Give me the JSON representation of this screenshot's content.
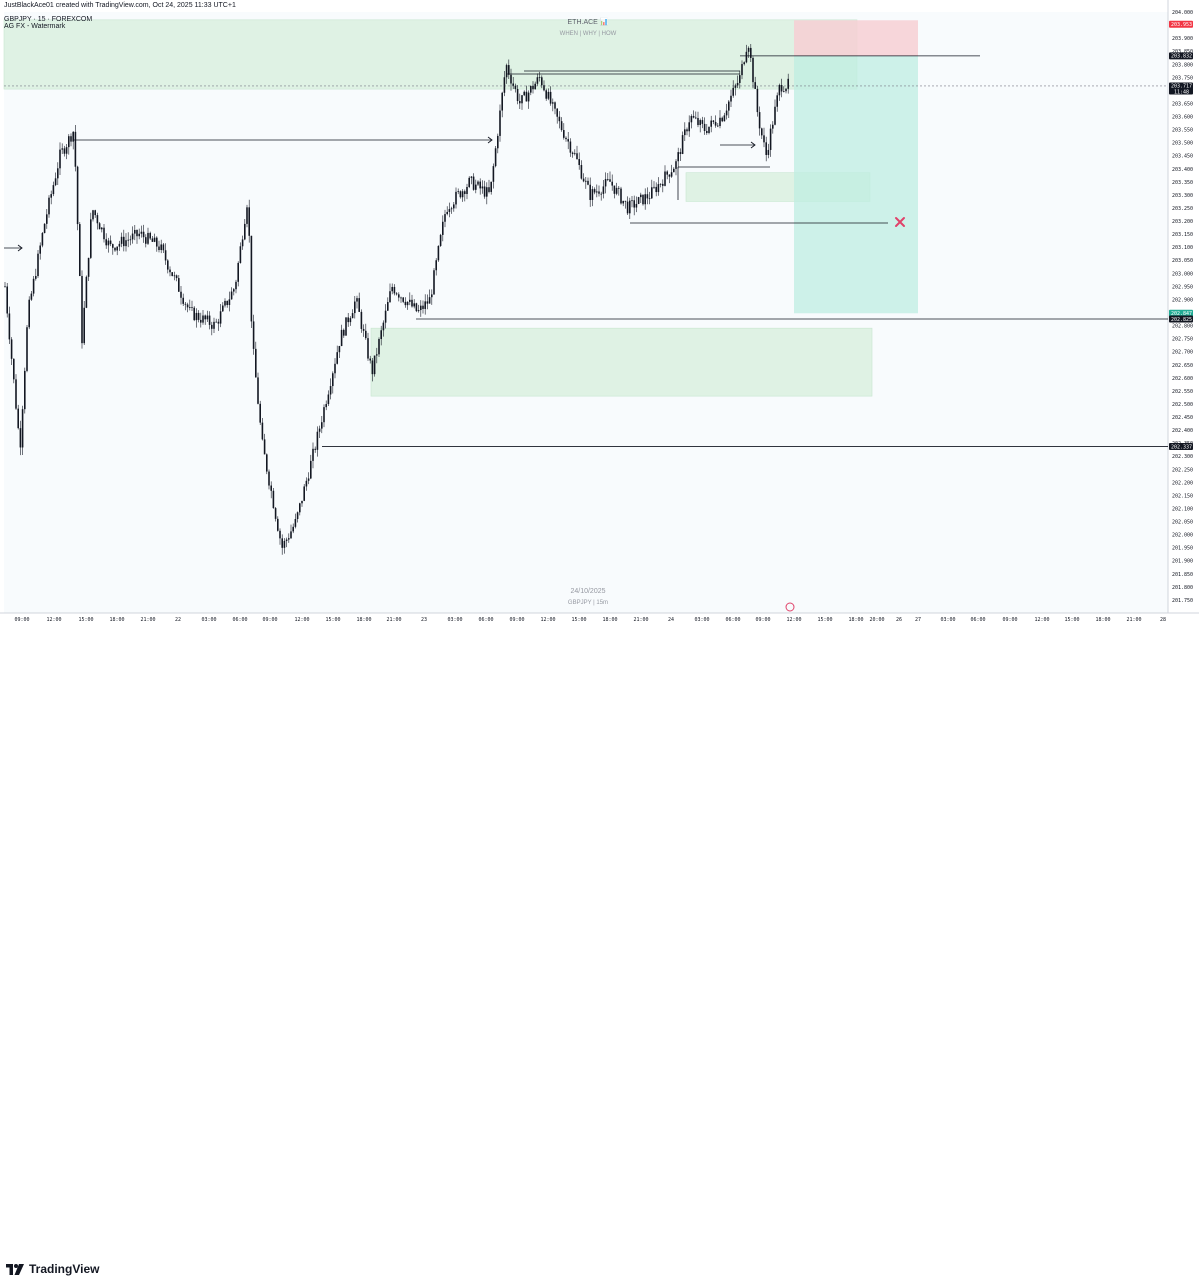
{
  "header": {
    "created_by": "JustBlackAce01 created with TradingView.com, Oct 24, 2025 11:33 UTC+1",
    "symbol_line": "GBPJPY · 15 · FOREXCOM",
    "indicator_line": "AG FX - Watermark"
  },
  "watermark": {
    "brand": "ETH.ACE 📊",
    "tagline": "WHEN | WHY | HOW",
    "date": "24/10/2025",
    "symbol_tf": "GBPJPY | 15m"
  },
  "footer": {
    "logo_icon": "tradingview-logo-icon",
    "brand": "TradingView"
  },
  "chart_data": {
    "type": "candlestick",
    "symbol": "GBPJPY",
    "timeframe": "15",
    "ylim": [
      201.7,
      204.0
    ],
    "y_ticks": [
      "204.000",
      "203.950",
      "203.900",
      "203.850",
      "203.800",
      "203.750",
      "203.700",
      "203.650",
      "203.600",
      "203.550",
      "203.500",
      "203.450",
      "203.400",
      "203.350",
      "203.300",
      "203.250",
      "203.200",
      "203.150",
      "203.100",
      "203.050",
      "203.000",
      "202.950",
      "202.900",
      "202.850",
      "202.800",
      "202.750",
      "202.700",
      "202.650",
      "202.600",
      "202.550",
      "202.500",
      "202.450",
      "202.400",
      "202.350",
      "202.300",
      "202.250",
      "202.200",
      "202.150",
      "202.100",
      "202.050",
      "202.000",
      "201.950",
      "201.900",
      "201.850",
      "201.800",
      "201.750"
    ],
    "x_ticks": [
      "09:00",
      "12:00",
      "15:00",
      "18:00",
      "21:00",
      "22",
      "03:00",
      "06:00",
      "09:00",
      "12:00",
      "15:00",
      "18:00",
      "21:00",
      "23",
      "03:00",
      "06:00",
      "09:00",
      "12:00",
      "15:00",
      "18:00",
      "21:00",
      "24",
      "03:00",
      "06:00",
      "09:00",
      "12:00",
      "15:00",
      "18:00",
      "20:00",
      "26",
      "27",
      "03:00",
      "06:00",
      "09:00",
      "12:00",
      "15:00",
      "18:00",
      "21:00",
      "28"
    ],
    "price_labels": [
      {
        "value": 203.953,
        "text": "203.953",
        "bg": "#f23645",
        "fg": "#ffffff"
      },
      {
        "value": 203.832,
        "text": "203.832",
        "bg": "#131722",
        "fg": "#ffffff"
      },
      {
        "value": 203.717,
        "text": "203.717",
        "sub": "11:48",
        "bg": "#131722",
        "fg": "#ffffff"
      },
      {
        "value": 202.847,
        "text": "202.847",
        "bg": "#22ab94",
        "fg": "#ffffff"
      },
      {
        "value": 202.825,
        "text": "202.825",
        "bg": "#131722",
        "fg": "#ffffff"
      },
      {
        "value": 202.337,
        "text": "202.337",
        "bg": "#131722",
        "fg": "#ffffff"
      }
    ],
    "key_levels": [
      202.825,
      202.337,
      203.832
    ],
    "position": {
      "entry": 203.832,
      "stop": 203.953,
      "target": 202.847
    },
    "zones": [
      {
        "name": "supply",
        "top": 203.97,
        "bottom": 203.705,
        "color": "#dff2e4"
      },
      {
        "name": "fvg-upper",
        "top": 203.385,
        "bottom": 203.275,
        "color": "#dff2e4"
      },
      {
        "name": "demand",
        "top": 202.79,
        "bottom": 202.53,
        "color": "#dff2e4"
      }
    ],
    "colors": {
      "candle": "#131722",
      "background": "#f8fbfd",
      "stop": "#f7cfd3",
      "target": "#bfeee2",
      "invalidation": "#e0436a"
    }
  }
}
